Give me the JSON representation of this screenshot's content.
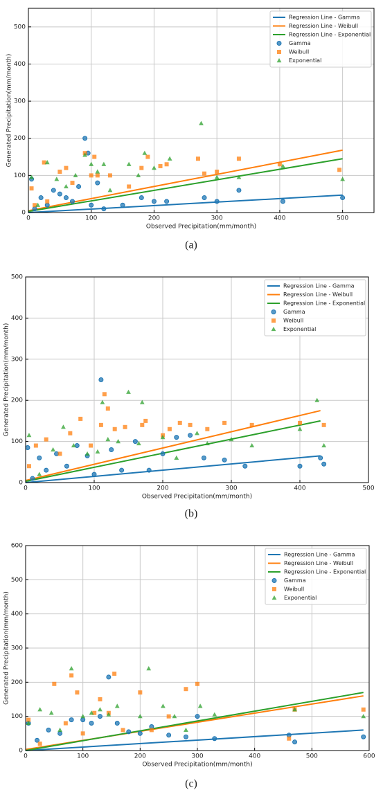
{
  "chart_data": [
    {
      "type": "scatter",
      "caption": "(a)",
      "xlabel": "Observed Precipitation(mm/month)",
      "ylabel": "Generated Precipitation(mm/month)",
      "xlim": [
        0,
        550
      ],
      "ylim": [
        0,
        550
      ],
      "xticks": [
        0,
        100,
        200,
        300,
        400,
        500
      ],
      "yticks": [
        0,
        100,
        200,
        300,
        400,
        500
      ],
      "grid": true,
      "legend": "upper right",
      "series": [
        {
          "name": "Regression Line - Gamma",
          "kind": "line",
          "color": "#1f77b4",
          "x": [
            0,
            500
          ],
          "values": [
            0,
            47
          ]
        },
        {
          "name": "Regression Line - Weibull",
          "kind": "line",
          "color": "#ff7f0e",
          "x": [
            0,
            500
          ],
          "values": [
            5,
            168
          ]
        },
        {
          "name": "Regression Line - Exponential",
          "kind": "line",
          "color": "#2ca02c",
          "x": [
            0,
            500
          ],
          "values": [
            3,
            145
          ]
        },
        {
          "name": "Gamma",
          "kind": "points",
          "marker": "circle",
          "color": "#1f77b4",
          "x": [
            5,
            10,
            20,
            30,
            40,
            50,
            60,
            70,
            80,
            90,
            95,
            100,
            110,
            120,
            150,
            180,
            200,
            220,
            280,
            300,
            335,
            405,
            500
          ],
          "values": [
            90,
            10,
            40,
            20,
            60,
            50,
            40,
            30,
            70,
            200,
            160,
            20,
            80,
            10,
            20,
            40,
            30,
            30,
            40,
            30,
            60,
            30,
            40
          ]
        },
        {
          "name": "Weibull",
          "kind": "points",
          "marker": "square",
          "color": "#ff7f0e",
          "x": [
            5,
            10,
            25,
            30,
            50,
            60,
            70,
            90,
            100,
            105,
            110,
            130,
            160,
            180,
            190,
            210,
            220,
            270,
            280,
            300,
            335,
            400,
            495
          ],
          "values": [
            65,
            20,
            135,
            30,
            110,
            120,
            80,
            160,
            100,
            150,
            100,
            100,
            70,
            120,
            150,
            125,
            130,
            145,
            105,
            110,
            145,
            130,
            115
          ]
        },
        {
          "name": "Exponential",
          "kind": "points",
          "marker": "triangle",
          "color": "#2ca02c",
          "x": [
            5,
            15,
            30,
            45,
            60,
            75,
            90,
            100,
            110,
            120,
            130,
            160,
            175,
            185,
            200,
            225,
            275,
            300,
            335,
            405,
            500
          ],
          "values": [
            95,
            20,
            135,
            90,
            70,
            100,
            155,
            130,
            110,
            130,
            60,
            130,
            100,
            160,
            120,
            145,
            240,
            95,
            95,
            125,
            90
          ]
        }
      ]
    },
    {
      "type": "scatter",
      "caption": "(b)",
      "xlabel": "Observed Precipitation(mm/month)",
      "ylabel": "Generated Precipitation(mm/month)",
      "xlim": [
        0,
        500
      ],
      "ylim": [
        0,
        500
      ],
      "xticks": [
        0,
        100,
        200,
        300,
        400,
        500
      ],
      "yticks": [
        0,
        100,
        200,
        300,
        400,
        500
      ],
      "grid": true,
      "legend": "upper right",
      "series": [
        {
          "name": "Regression Line - Gamma",
          "kind": "line",
          "color": "#1f77b4",
          "x": [
            0,
            430
          ],
          "values": [
            0,
            65
          ]
        },
        {
          "name": "Regression Line - Weibull",
          "kind": "line",
          "color": "#ff7f0e",
          "x": [
            0,
            430
          ],
          "values": [
            5,
            175
          ]
        },
        {
          "name": "Regression Line - Exponential",
          "kind": "line",
          "color": "#2ca02c",
          "x": [
            0,
            430
          ],
          "values": [
            3,
            150
          ]
        },
        {
          "name": "Gamma",
          "kind": "points",
          "marker": "circle",
          "color": "#1f77b4",
          "x": [
            3,
            10,
            20,
            30,
            45,
            60,
            75,
            90,
            100,
            110,
            125,
            140,
            160,
            180,
            200,
            220,
            240,
            260,
            290,
            320,
            400,
            430,
            435
          ],
          "values": [
            85,
            10,
            60,
            30,
            70,
            40,
            90,
            65,
            20,
            250,
            80,
            30,
            100,
            30,
            70,
            110,
            115,
            60,
            55,
            40,
            40,
            60,
            45
          ]
        },
        {
          "name": "Weibull",
          "kind": "points",
          "marker": "square",
          "color": "#ff7f0e",
          "x": [
            5,
            15,
            30,
            50,
            65,
            80,
            95,
            110,
            115,
            120,
            130,
            145,
            170,
            175,
            200,
            210,
            225,
            240,
            265,
            290,
            330,
            400,
            435
          ],
          "values": [
            40,
            90,
            105,
            70,
            120,
            155,
            90,
            140,
            215,
            180,
            130,
            135,
            140,
            150,
            115,
            130,
            145,
            140,
            130,
            145,
            140,
            145,
            140
          ]
        },
        {
          "name": "Exponential",
          "kind": "points",
          "marker": "triangle",
          "color": "#2ca02c",
          "x": [
            5,
            20,
            40,
            55,
            70,
            90,
            105,
            112,
            120,
            135,
            150,
            165,
            170,
            200,
            220,
            250,
            265,
            300,
            330,
            400,
            425,
            435
          ],
          "values": [
            115,
            20,
            80,
            135,
            90,
            70,
            75,
            195,
            105,
            100,
            220,
            95,
            195,
            110,
            60,
            120,
            95,
            105,
            90,
            130,
            200,
            90
          ]
        }
      ]
    },
    {
      "type": "scatter",
      "caption": "(c)",
      "xlabel": "Observed Precipitation(mm/month)",
      "ylabel": "Generated Precipitation(mm/month)",
      "xlim": [
        0,
        600
      ],
      "ylim": [
        0,
        600
      ],
      "xticks": [
        0,
        100,
        200,
        300,
        400,
        500,
        600
      ],
      "yticks": [
        0,
        100,
        200,
        300,
        400,
        500,
        600
      ],
      "grid": true,
      "legend": "upper right",
      "series": [
        {
          "name": "Regression Line - Gamma",
          "kind": "line",
          "color": "#1f77b4",
          "x": [
            0,
            590
          ],
          "values": [
            0,
            60
          ]
        },
        {
          "name": "Regression Line - Weibull",
          "kind": "line",
          "color": "#ff7f0e",
          "x": [
            0,
            590
          ],
          "values": [
            3,
            160
          ]
        },
        {
          "name": "Regression Line - Exponential",
          "kind": "line",
          "color": "#2ca02c",
          "x": [
            0,
            590
          ],
          "values": [
            0,
            170
          ]
        },
        {
          "name": "Gamma",
          "kind": "points",
          "marker": "circle",
          "color": "#1f77b4",
          "x": [
            5,
            20,
            40,
            60,
            80,
            100,
            115,
            130,
            145,
            160,
            180,
            200,
            220,
            250,
            280,
            300,
            330,
            460,
            470,
            590
          ],
          "values": [
            80,
            30,
            60,
            50,
            90,
            90,
            80,
            100,
            215,
            80,
            55,
            50,
            70,
            45,
            40,
            100,
            35,
            45,
            25,
            40
          ]
        },
        {
          "name": "Weibull",
          "kind": "points",
          "marker": "square",
          "color": "#ff7f0e",
          "x": [
            5,
            25,
            50,
            70,
            80,
            90,
            100,
            120,
            130,
            145,
            155,
            170,
            200,
            220,
            250,
            280,
            300,
            460,
            470,
            590
          ],
          "values": [
            90,
            20,
            195,
            80,
            220,
            170,
            50,
            110,
            150,
            110,
            225,
            60,
            170,
            60,
            100,
            180,
            195,
            35,
            120,
            120
          ]
        },
        {
          "name": "Exponential",
          "kind": "points",
          "marker": "triangle",
          "color": "#2ca02c",
          "x": [
            5,
            25,
            45,
            60,
            80,
            100,
            115,
            130,
            145,
            160,
            200,
            215,
            240,
            260,
            280,
            305,
            330,
            470,
            590
          ],
          "values": [
            80,
            120,
            110,
            60,
            240,
            100,
            110,
            120,
            105,
            130,
            100,
            240,
            130,
            100,
            60,
            130,
            105,
            120,
            100
          ]
        }
      ]
    }
  ]
}
